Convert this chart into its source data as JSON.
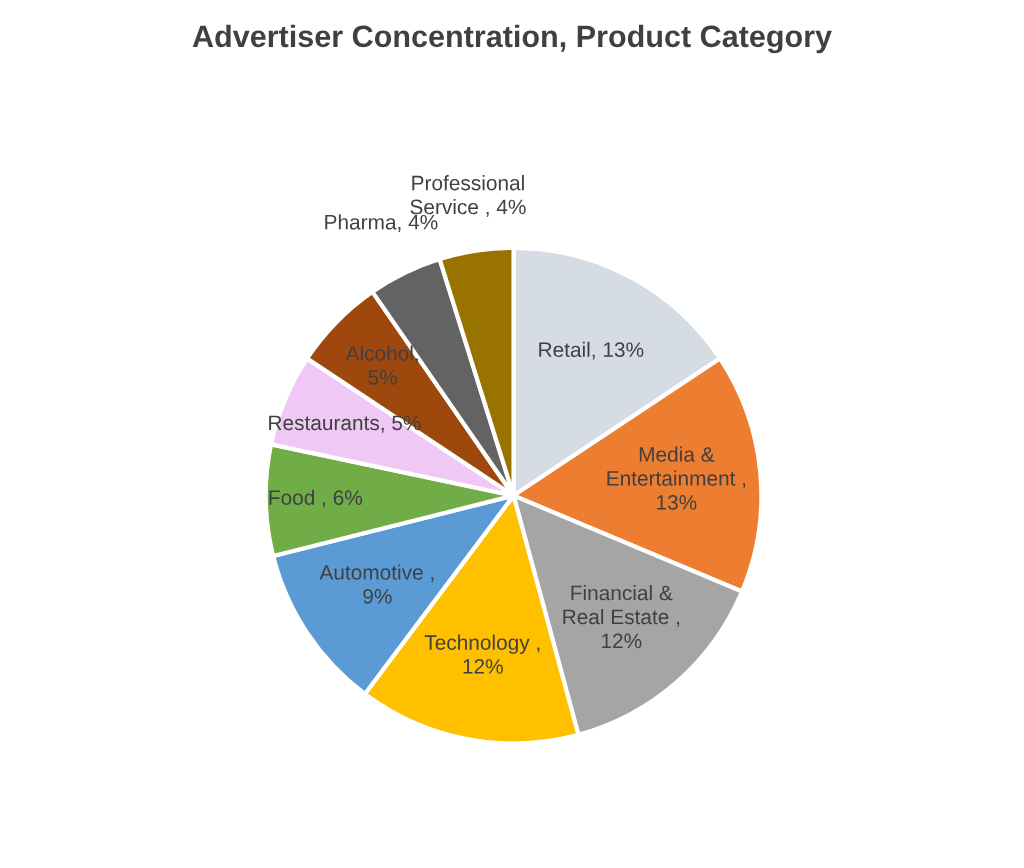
{
  "chart_data": {
    "type": "pie",
    "title": "Advertiser Concentration, Product Category",
    "categories": [
      "Retail",
      "Media & Entertainment",
      "Financial & Real Estate",
      "Technology",
      "Automotive",
      "Food",
      "Restaurants",
      "Alcohol",
      "Pharma",
      "Professional Service"
    ],
    "values": [
      13,
      13,
      12,
      12,
      9,
      6,
      5,
      5,
      4,
      4
    ],
    "colors": [
      "#d6dce4",
      "#ed7d31",
      "#a5a5a5",
      "#ffc000",
      "#5b9bd5",
      "#70ad47",
      "#f0c8f5",
      "#9e480e",
      "#636363",
      "#997300"
    ],
    "value_labels": [
      ", 13%",
      " , 13%",
      " , 12%",
      " , 12%",
      " , 9%",
      " , 6%",
      ", 5%",
      ", 5%",
      ", 4%",
      " , 4%"
    ],
    "legend": false
  }
}
